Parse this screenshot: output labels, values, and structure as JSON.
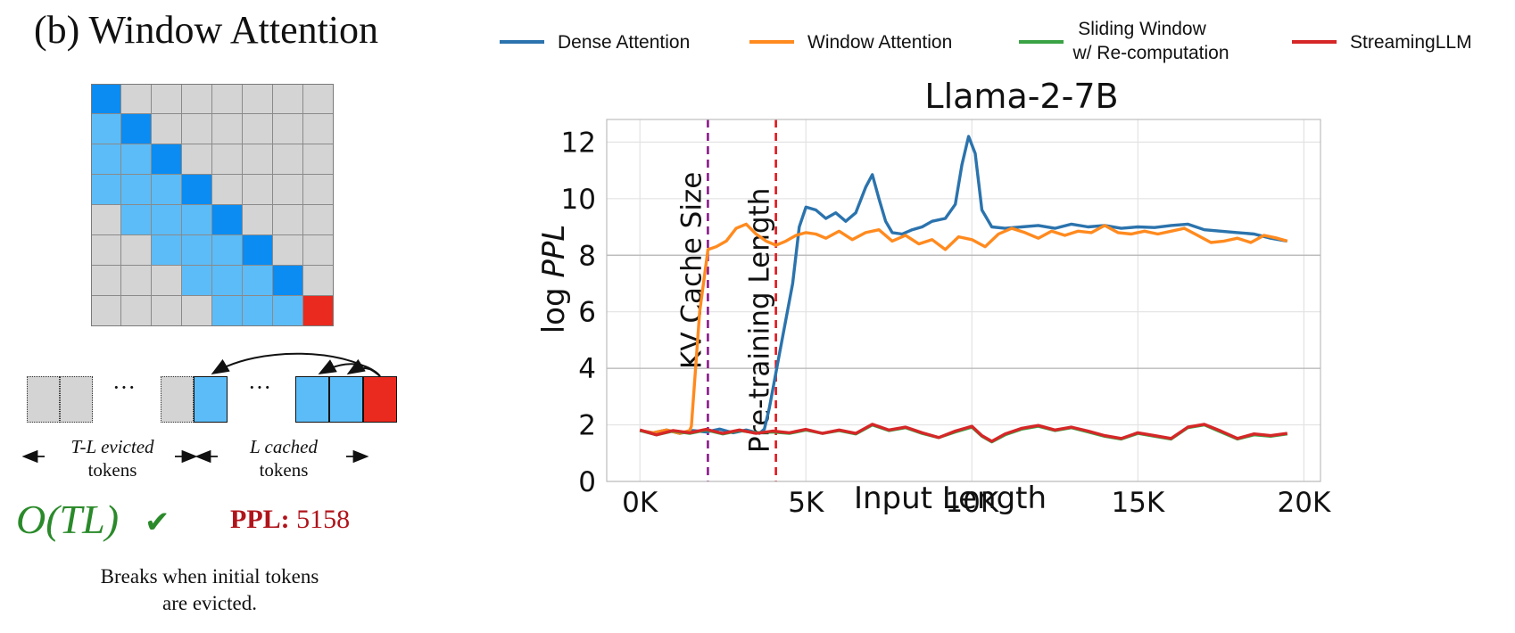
{
  "panel": {
    "title": "(b) Window Attention",
    "ellipsis": "···",
    "evicted_caption_line1": "T-L evicted",
    "evicted_caption_line2": "tokens",
    "cached_caption_line1": "L cached",
    "cached_caption_line2": "tokens",
    "complexity": "O(TL)",
    "check_mark": "✔",
    "ppl_label": "PPL:",
    "ppl_value": "5158",
    "note_line1": "Breaks when initial tokens",
    "note_line2": "are evicted.",
    "colors": {
      "grey": "#d4d4d4",
      "light_blue": "#5cbcf7",
      "blue": "#0a8cf2",
      "red": "#ea2a1e",
      "green": "#2a8a2a",
      "ppl_red": "#b0141b"
    }
  },
  "chart_data": {
    "type": "line",
    "title": "Llama-2-7B",
    "xlabel": "Input Length",
    "ylabel_prefix": "log ",
    "ylabel_italic": "PPL",
    "xlim": [
      -1000,
      20500
    ],
    "ylim": [
      0,
      12.8
    ],
    "xticks": [
      0,
      5000,
      10000,
      15000,
      20000
    ],
    "xtick_labels": [
      "0K",
      "5K",
      "10K",
      "15K",
      "20K"
    ],
    "yticks": [
      0,
      2,
      4,
      6,
      8,
      10,
      12
    ],
    "ytick_labels": [
      "0",
      "2",
      "4",
      "6",
      "8",
      "10",
      "12"
    ],
    "grid": true,
    "legend_position": "top",
    "vlines": [
      {
        "x": 2048,
        "label": "KV Cache Size",
        "color": "#8b1a8b"
      },
      {
        "x": 4096,
        "label": "Pre-training Length",
        "color": "#e0161b"
      }
    ],
    "series": [
      {
        "name": "Dense Attention",
        "color": "#2b73ad",
        "points": [
          [
            0,
            1.8
          ],
          [
            400,
            1.72
          ],
          [
            800,
            1.82
          ],
          [
            1200,
            1.7
          ],
          [
            1600,
            1.8
          ],
          [
            2000,
            1.75
          ],
          [
            2400,
            1.85
          ],
          [
            2800,
            1.72
          ],
          [
            3200,
            1.82
          ],
          [
            3600,
            1.7
          ],
          [
            3750,
            1.85
          ],
          [
            3900,
            2.6
          ],
          [
            4200,
            4.5
          ],
          [
            4600,
            7.0
          ],
          [
            4800,
            9.0
          ],
          [
            5000,
            9.7
          ],
          [
            5300,
            9.6
          ],
          [
            5600,
            9.3
          ],
          [
            5900,
            9.5
          ],
          [
            6200,
            9.2
          ],
          [
            6500,
            9.5
          ],
          [
            6800,
            10.4
          ],
          [
            7000,
            10.85
          ],
          [
            7200,
            10.0
          ],
          [
            7400,
            9.2
          ],
          [
            7600,
            8.8
          ],
          [
            7900,
            8.75
          ],
          [
            8200,
            8.9
          ],
          [
            8500,
            9.0
          ],
          [
            8800,
            9.2
          ],
          [
            9200,
            9.3
          ],
          [
            9500,
            9.8
          ],
          [
            9700,
            11.2
          ],
          [
            9900,
            12.2
          ],
          [
            10100,
            11.6
          ],
          [
            10300,
            9.6
          ],
          [
            10600,
            9.0
          ],
          [
            11000,
            8.95
          ],
          [
            11500,
            9.0
          ],
          [
            12000,
            9.05
          ],
          [
            12500,
            8.95
          ],
          [
            13000,
            9.1
          ],
          [
            13500,
            9.0
          ],
          [
            14000,
            9.05
          ],
          [
            14500,
            8.95
          ],
          [
            15000,
            9.0
          ],
          [
            15500,
            8.98
          ],
          [
            16000,
            9.05
          ],
          [
            16500,
            9.1
          ],
          [
            17000,
            8.9
          ],
          [
            17500,
            8.85
          ],
          [
            18000,
            8.8
          ],
          [
            18500,
            8.75
          ],
          [
            19000,
            8.6
          ],
          [
            19500,
            8.5
          ]
        ]
      },
      {
        "name": "Window Attention",
        "color": "#ff8a1f",
        "points": [
          [
            0,
            1.8
          ],
          [
            400,
            1.72
          ],
          [
            800,
            1.82
          ],
          [
            1200,
            1.7
          ],
          [
            1500,
            1.8
          ],
          [
            1550,
            1.95
          ],
          [
            1800,
            6.0
          ],
          [
            2050,
            8.2
          ],
          [
            2300,
            8.3
          ],
          [
            2600,
            8.5
          ],
          [
            2900,
            8.95
          ],
          [
            3200,
            9.1
          ],
          [
            3500,
            8.75
          ],
          [
            3800,
            8.5
          ],
          [
            4100,
            8.35
          ],
          [
            4400,
            8.5
          ],
          [
            4700,
            8.7
          ],
          [
            5000,
            8.8
          ],
          [
            5300,
            8.75
          ],
          [
            5600,
            8.6
          ],
          [
            6000,
            8.85
          ],
          [
            6400,
            8.55
          ],
          [
            6800,
            8.8
          ],
          [
            7200,
            8.9
          ],
          [
            7600,
            8.5
          ],
          [
            8000,
            8.7
          ],
          [
            8400,
            8.4
          ],
          [
            8800,
            8.55
          ],
          [
            9200,
            8.2
          ],
          [
            9600,
            8.65
          ],
          [
            10000,
            8.55
          ],
          [
            10400,
            8.3
          ],
          [
            10800,
            8.75
          ],
          [
            11200,
            8.95
          ],
          [
            11600,
            8.8
          ],
          [
            12000,
            8.6
          ],
          [
            12400,
            8.85
          ],
          [
            12800,
            8.7
          ],
          [
            13200,
            8.85
          ],
          [
            13600,
            8.8
          ],
          [
            14000,
            9.05
          ],
          [
            14400,
            8.8
          ],
          [
            14800,
            8.75
          ],
          [
            15200,
            8.85
          ],
          [
            15600,
            8.75
          ],
          [
            16000,
            8.85
          ],
          [
            16400,
            8.95
          ],
          [
            16800,
            8.7
          ],
          [
            17200,
            8.45
          ],
          [
            17600,
            8.5
          ],
          [
            18000,
            8.6
          ],
          [
            18400,
            8.45
          ],
          [
            18800,
            8.7
          ],
          [
            19200,
            8.6
          ],
          [
            19500,
            8.5
          ]
        ]
      },
      {
        "name": "Sliding Window w/ Re-computation",
        "legend_line1": "Sliding Window",
        "legend_line2": "w/ Re-computation",
        "color": "#3aa345",
        "points": [
          [
            0,
            1.8
          ],
          [
            500,
            1.65
          ],
          [
            1000,
            1.78
          ],
          [
            1500,
            1.7
          ],
          [
            2000,
            1.82
          ],
          [
            2500,
            1.68
          ],
          [
            3000,
            1.8
          ],
          [
            3500,
            1.72
          ],
          [
            4000,
            1.75
          ],
          [
            4500,
            1.7
          ],
          [
            5000,
            1.82
          ],
          [
            5500,
            1.7
          ],
          [
            6000,
            1.8
          ],
          [
            6500,
            1.68
          ],
          [
            7000,
            2.0
          ],
          [
            7500,
            1.8
          ],
          [
            8000,
            1.9
          ],
          [
            8500,
            1.7
          ],
          [
            9000,
            1.55
          ],
          [
            9500,
            1.75
          ],
          [
            10000,
            1.92
          ],
          [
            10300,
            1.6
          ],
          [
            10600,
            1.4
          ],
          [
            11000,
            1.65
          ],
          [
            11500,
            1.85
          ],
          [
            12000,
            1.95
          ],
          [
            12500,
            1.8
          ],
          [
            13000,
            1.9
          ],
          [
            13500,
            1.75
          ],
          [
            14000,
            1.6
          ],
          [
            14500,
            1.5
          ],
          [
            15000,
            1.7
          ],
          [
            15500,
            1.6
          ],
          [
            16000,
            1.5
          ],
          [
            16500,
            1.9
          ],
          [
            17000,
            2.0
          ],
          [
            17500,
            1.75
          ],
          [
            18000,
            1.5
          ],
          [
            18500,
            1.65
          ],
          [
            19000,
            1.6
          ],
          [
            19500,
            1.68
          ]
        ]
      },
      {
        "name": "StreamingLLM",
        "color": "#d62728",
        "points": [
          [
            0,
            1.82
          ],
          [
            500,
            1.65
          ],
          [
            1000,
            1.8
          ],
          [
            1500,
            1.72
          ],
          [
            2000,
            1.84
          ],
          [
            2500,
            1.7
          ],
          [
            3000,
            1.82
          ],
          [
            3500,
            1.7
          ],
          [
            4000,
            1.78
          ],
          [
            4500,
            1.72
          ],
          [
            5000,
            1.84
          ],
          [
            5500,
            1.7
          ],
          [
            6000,
            1.82
          ],
          [
            6500,
            1.7
          ],
          [
            7000,
            2.02
          ],
          [
            7500,
            1.82
          ],
          [
            8000,
            1.92
          ],
          [
            8500,
            1.72
          ],
          [
            9000,
            1.55
          ],
          [
            9500,
            1.78
          ],
          [
            10000,
            1.95
          ],
          [
            10300,
            1.62
          ],
          [
            10600,
            1.42
          ],
          [
            11000,
            1.68
          ],
          [
            11500,
            1.88
          ],
          [
            12000,
            1.98
          ],
          [
            12500,
            1.82
          ],
          [
            13000,
            1.92
          ],
          [
            13500,
            1.78
          ],
          [
            14000,
            1.62
          ],
          [
            14500,
            1.52
          ],
          [
            15000,
            1.72
          ],
          [
            15500,
            1.62
          ],
          [
            16000,
            1.52
          ],
          [
            16500,
            1.92
          ],
          [
            17000,
            2.02
          ],
          [
            17500,
            1.78
          ],
          [
            18000,
            1.52
          ],
          [
            18500,
            1.68
          ],
          [
            19000,
            1.62
          ],
          [
            19500,
            1.7
          ]
        ]
      }
    ]
  }
}
